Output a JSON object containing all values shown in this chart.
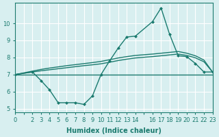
{
  "xlabel": "Humidex (Indice chaleur)",
  "bg_color": "#d8eff0",
  "line_color": "#1a7a6e",
  "xlim": [
    0,
    23
  ],
  "ylim": [
    4.8,
    11.2
  ],
  "yticks": [
    5,
    6,
    7,
    8,
    9,
    10
  ],
  "ytick_labels": [
    "5",
    "6",
    "7",
    "8",
    "9",
    "10"
  ],
  "xticks": [
    0,
    1,
    2,
    3,
    4,
    5,
    6,
    7,
    8,
    9,
    10,
    11,
    12,
    13,
    14,
    15,
    16,
    17,
    18,
    19,
    20,
    21,
    22,
    23
  ],
  "xtick_labels": [
    "0",
    "",
    "2",
    "3",
    "4",
    "5",
    "6",
    "7",
    "8",
    "9",
    "10",
    "11",
    "12",
    "13",
    "14",
    "",
    "16",
    "17",
    "18",
    "19",
    "20",
    "21",
    "22",
    "23"
  ],
  "line1_x": [
    0,
    2,
    3,
    4,
    5,
    6,
    7,
    8,
    9,
    10,
    11,
    12,
    13,
    14,
    16,
    17,
    18,
    19,
    20,
    21,
    22,
    23
  ],
  "line1_y": [
    7.0,
    7.15,
    6.65,
    6.1,
    5.35,
    5.35,
    5.35,
    5.25,
    5.75,
    7.0,
    7.8,
    8.55,
    9.2,
    9.25,
    10.1,
    10.9,
    9.35,
    8.1,
    8.05,
    7.65,
    7.15,
    7.15
  ],
  "line2_x": [
    0,
    2,
    3,
    4,
    5,
    6,
    7,
    8,
    9,
    10,
    11,
    12,
    13,
    14,
    16,
    17,
    18,
    19,
    20,
    21,
    22,
    23
  ],
  "line2_y": [
    7.0,
    7.2,
    7.3,
    7.38,
    7.45,
    7.52,
    7.58,
    7.64,
    7.7,
    7.77,
    7.87,
    7.97,
    8.05,
    8.12,
    8.2,
    8.25,
    8.3,
    8.35,
    8.25,
    8.1,
    7.85,
    7.15
  ],
  "line3_x": [
    0,
    23
  ],
  "line3_y": [
    7.0,
    7.0
  ],
  "line4_x": [
    0,
    2,
    3,
    4,
    5,
    6,
    7,
    8,
    9,
    10,
    11,
    12,
    13,
    14,
    16,
    17,
    18,
    19,
    20,
    21,
    22,
    23
  ],
  "line4_y": [
    7.0,
    7.15,
    7.22,
    7.28,
    7.34,
    7.4,
    7.46,
    7.52,
    7.57,
    7.63,
    7.72,
    7.82,
    7.9,
    7.97,
    8.05,
    8.1,
    8.15,
    8.2,
    8.12,
    7.98,
    7.75,
    7.15
  ]
}
